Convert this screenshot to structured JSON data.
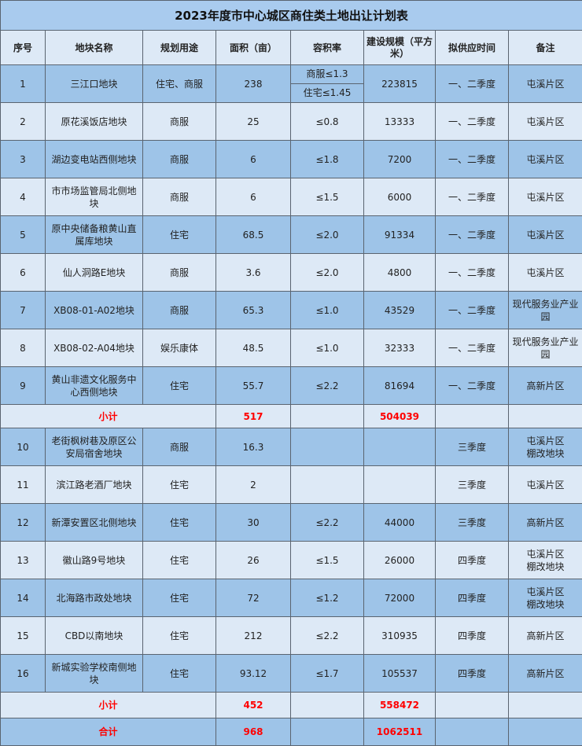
{
  "title": "2023年度市中心城区商住类土地出让计划表",
  "headers": [
    "序号",
    "地块名称",
    "规划用途",
    "面积（亩）",
    "容积率",
    "建设规模（平方米）",
    "拟供应时间",
    "备注"
  ],
  "rows": [
    {
      "no": "1",
      "name": "三江口地块",
      "use": "住宅、商服",
      "area": "238",
      "far": [
        "商服≤1.3",
        "住宅≤1.45"
      ],
      "scale": "223815",
      "time": "一、二季度",
      "note": "屯溪片区"
    },
    {
      "no": "2",
      "name": "原花溪饭店地块",
      "use": "商服",
      "area": "25",
      "far": "≤0.8",
      "scale": "13333",
      "time": "一、二季度",
      "note": "屯溪片区"
    },
    {
      "no": "3",
      "name": "湖边变电站西侧地块",
      "use": "商服",
      "area": "6",
      "far": "≤1.8",
      "scale": "7200",
      "time": "一、二季度",
      "note": "屯溪片区"
    },
    {
      "no": "4",
      "name": "市市场监管局北侧地块",
      "use": "商服",
      "area": "6",
      "far": "≤1.5",
      "scale": "6000",
      "time": "一、二季度",
      "note": "屯溪片区"
    },
    {
      "no": "5",
      "name": "原中央储备粮黄山直属库地块",
      "use": "住宅",
      "area": "68.5",
      "far": "≤2.0",
      "scale": "91334",
      "time": "一、二季度",
      "note": "屯溪片区"
    },
    {
      "no": "6",
      "name": "仙人洞路E地块",
      "use": "商服",
      "area": "3.6",
      "far": "≤2.0",
      "scale": "4800",
      "time": "一、二季度",
      "note": "屯溪片区"
    },
    {
      "no": "7",
      "name": "XB08-01-A02地块",
      "use": "商服",
      "area": "65.3",
      "far": "≤1.0",
      "scale": "43529",
      "time": "一、二季度",
      "note": "现代服务业产业园"
    },
    {
      "no": "8",
      "name": "XB08-02-A04地块",
      "use": "娱乐康体",
      "area": "48.5",
      "far": "≤1.0",
      "scale": "32333",
      "time": "一、二季度",
      "note": "现代服务业产业园"
    },
    {
      "no": "9",
      "name": "黄山非遗文化服务中心西侧地块",
      "use": "住宅",
      "area": "55.7",
      "far": "≤2.2",
      "scale": "81694",
      "time": "一、二季度",
      "note": "高新片区"
    },
    {
      "summary": "小计",
      "area": "517",
      "scale": "504039",
      "cls": "sub1"
    },
    {
      "no": "10",
      "name": "老街枫树巷及原区公安局宿舍地块",
      "use": "商服",
      "area": "16.3",
      "far": "",
      "scale": "",
      "time": "三季度",
      "note": "屯溪片区\n棚改地块"
    },
    {
      "no": "11",
      "name": "滨江路老酒厂地块",
      "use": "住宅",
      "area": "2",
      "far": "",
      "scale": "",
      "time": "三季度",
      "note": "屯溪片区"
    },
    {
      "no": "12",
      "name": "新潭安置区北侧地块",
      "use": "住宅",
      "area": "30",
      "far": "≤2.2",
      "scale": "44000",
      "time": "三季度",
      "note": "高新片区"
    },
    {
      "no": "13",
      "name": "徽山路9号地块",
      "use": "住宅",
      "area": "26",
      "far": "≤1.5",
      "scale": "26000",
      "time": "四季度",
      "note": "屯溪片区\n棚改地块"
    },
    {
      "no": "14",
      "name": "北海路市政处地块",
      "use": "住宅",
      "area": "72",
      "far": "≤1.2",
      "scale": "72000",
      "time": "四季度",
      "note": "屯溪片区\n棚改地块"
    },
    {
      "no": "15",
      "name": "CBD以南地块",
      "use": "住宅",
      "area": "212",
      "far": "≤2.2",
      "scale": "310935",
      "time": "四季度",
      "note": "高新片区"
    },
    {
      "no": "16",
      "name": "新城实验学校南侧地块",
      "use": "住宅",
      "area": "93.12",
      "far": "≤1.7",
      "scale": "105537",
      "time": "四季度",
      "note": "高新片区"
    },
    {
      "summary": "小计",
      "area": "452",
      "scale": "558472",
      "cls": "sub2"
    },
    {
      "summary": "合计",
      "area": "968",
      "scale": "1062511",
      "cls": "total"
    }
  ],
  "colors": {
    "title_bg": "#a9cbee",
    "row_blue": "#9ec4e8",
    "row_light": "#dde9f6",
    "summary_text": "#ff0000"
  }
}
